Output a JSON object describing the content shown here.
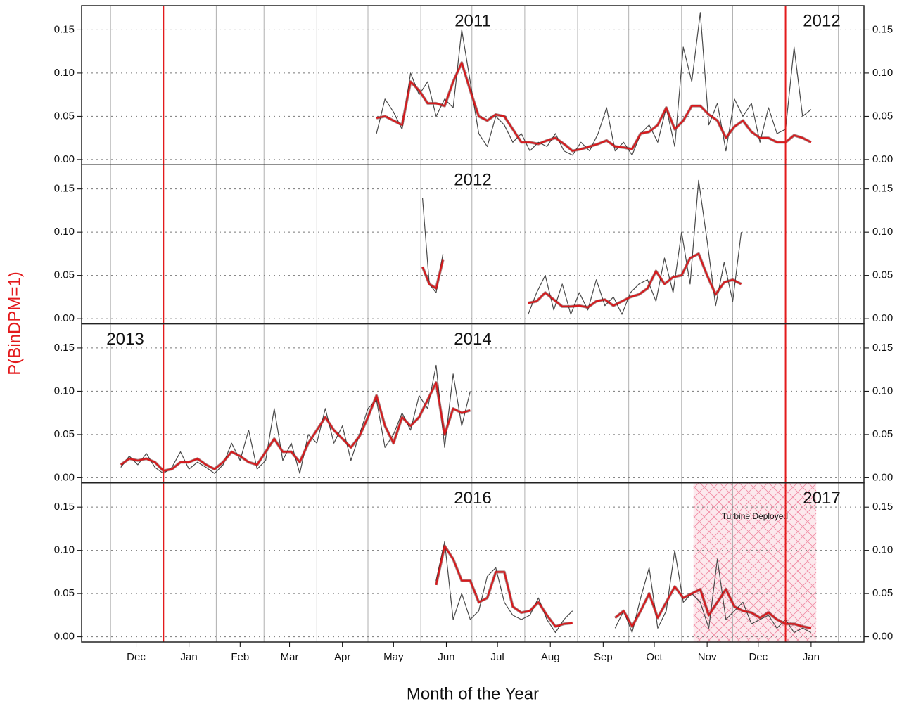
{
  "xlabel": "Month of the Year",
  "ylabel": "P(BinDPM=1)",
  "chart_data": [
    {
      "type": "line",
      "title": "2011",
      "corner_label": "2012",
      "corner_position": "right",
      "xlim": [
        -17,
        442
      ],
      "ylim": [
        -0.006,
        0.178
      ],
      "yticks": [
        {
          "value": 0,
          "label": "0.00"
        },
        {
          "value": 0.05,
          "label": "0.05"
        },
        {
          "value": 0.1,
          "label": "0.10"
        },
        {
          "value": 0.15,
          "label": "0.15"
        }
      ],
      "vlines": [
        0,
        31,
        62,
        90,
        121,
        151,
        182,
        212,
        243,
        274,
        304,
        335,
        365,
        396,
        427
      ],
      "vline_color": "#b0b0b0",
      "markers": [
        31,
        396
      ],
      "marker_color": "#e31a1c",
      "grid": true,
      "x": [
        156,
        161,
        166,
        171,
        176,
        181,
        186,
        191,
        196,
        201,
        206,
        211,
        216,
        221,
        226,
        231,
        236,
        241,
        246,
        251,
        256,
        261,
        266,
        271,
        276,
        281,
        286,
        291,
        296,
        301,
        306,
        311,
        316,
        321,
        326,
        331,
        336,
        341,
        346,
        351,
        356,
        361,
        366,
        371,
        376,
        381,
        386,
        391,
        396,
        401,
        406,
        411
      ],
      "series": [
        {
          "color": "#4a4a4a",
          "values": [
            0.03,
            0.07,
            0.055,
            0.035,
            0.1,
            0.075,
            0.09,
            0.05,
            0.07,
            0.06,
            0.15,
            0.09,
            0.03,
            0.015,
            0.05,
            0.04,
            0.02,
            0.03,
            0.01,
            0.02,
            0.015,
            0.03,
            0.01,
            0.005,
            0.02,
            0.01,
            0.03,
            0.06,
            0.01,
            0.02,
            0.005,
            0.03,
            0.04,
            0.02,
            0.06,
            0.015,
            0.13,
            0.09,
            0.17,
            0.04,
            0.065,
            0.01,
            0.07,
            0.05,
            0.065,
            0.02,
            0.06,
            0.03,
            0.035,
            0.13,
            0.05,
            0.058
          ]
        },
        {
          "color": "#d7191c",
          "values": [
            0.048,
            0.05,
            0.045,
            0.04,
            0.09,
            0.08,
            0.065,
            0.065,
            0.062,
            0.09,
            0.112,
            0.08,
            0.05,
            0.045,
            0.052,
            0.05,
            0.035,
            0.02,
            0.02,
            0.018,
            0.022,
            0.025,
            0.018,
            0.01,
            0.012,
            0.015,
            0.018,
            0.022,
            0.015,
            0.014,
            0.012,
            0.03,
            0.032,
            0.04,
            0.06,
            0.035,
            0.045,
            0.062,
            0.062,
            0.052,
            0.045,
            0.025,
            0.038,
            0.045,
            0.032,
            0.025,
            0.025,
            0.02,
            0.02,
            0.028,
            0.025,
            0.02
          ]
        }
      ]
    },
    {
      "type": "line",
      "title": "2012",
      "xlim": [
        -17,
        442
      ],
      "ylim": [
        -0.006,
        0.178
      ],
      "yticks": [
        {
          "value": 0,
          "label": "0.00"
        },
        {
          "value": 0.05,
          "label": "0.05"
        },
        {
          "value": 0.1,
          "label": "0.10"
        },
        {
          "value": 0.15,
          "label": "0.15"
        }
      ],
      "vlines": [
        0,
        31,
        62,
        90,
        121,
        151,
        182,
        212,
        243,
        274,
        304,
        335,
        365,
        396,
        427
      ],
      "vline_color": "#b0b0b0",
      "markers": [
        31,
        396
      ],
      "marker_color": "#e31a1c",
      "grid": true,
      "x": [
        183,
        187,
        191,
        195,
        220,
        245,
        250,
        255,
        260,
        265,
        270,
        275,
        280,
        285,
        290,
        295,
        300,
        305,
        310,
        315,
        320,
        325,
        330,
        335,
        340,
        345,
        350,
        355,
        360,
        365,
        370
      ],
      "series": [
        {
          "color": "#4a4a4a",
          "values": [
            0.14,
            0.04,
            0.03,
            0.075,
            null,
            0.005,
            0.03,
            0.05,
            0.01,
            0.04,
            0.005,
            0.03,
            0.01,
            0.045,
            0.015,
            0.025,
            0.005,
            0.03,
            0.04,
            0.045,
            0.02,
            0.07,
            0.03,
            0.1,
            0.04,
            0.16,
            0.09,
            0.015,
            0.065,
            0.02,
            0.1
          ]
        },
        {
          "color": "#d7191c",
          "values": [
            0.06,
            0.04,
            0.035,
            0.068,
            null,
            0.018,
            0.02,
            0.03,
            0.022,
            0.014,
            0.014,
            0.015,
            0.013,
            0.02,
            0.022,
            0.015,
            0.02,
            0.025,
            0.028,
            0.035,
            0.055,
            0.04,
            0.048,
            0.05,
            0.07,
            0.075,
            0.05,
            0.028,
            0.042,
            0.045,
            0.04
          ]
        }
      ]
    },
    {
      "type": "line",
      "title": "2014",
      "corner_label": "2013",
      "corner_position": "left",
      "xlim": [
        -17,
        442
      ],
      "ylim": [
        -0.006,
        0.178
      ],
      "yticks": [
        {
          "value": 0,
          "label": "0.00"
        },
        {
          "value": 0.05,
          "label": "0.05"
        },
        {
          "value": 0.1,
          "label": "0.10"
        },
        {
          "value": 0.15,
          "label": "0.15"
        }
      ],
      "vlines": [
        0,
        31,
        62,
        90,
        121,
        151,
        182,
        212,
        243,
        274,
        304,
        335,
        365,
        396,
        427
      ],
      "vline_color": "#b0b0b0",
      "markers": [
        31,
        396
      ],
      "marker_color": "#e31a1c",
      "grid": true,
      "x": [
        6,
        11,
        16,
        21,
        26,
        31,
        36,
        41,
        46,
        51,
        56,
        61,
        66,
        71,
        76,
        81,
        86,
        91,
        96,
        101,
        106,
        111,
        116,
        121,
        126,
        131,
        136,
        141,
        146,
        151,
        156,
        161,
        166,
        171,
        176,
        181,
        186,
        191,
        196,
        201,
        206,
        211
      ],
      "series": [
        {
          "color": "#4a4a4a",
          "values": [
            0.012,
            0.025,
            0.015,
            0.028,
            0.012,
            0.005,
            0.012,
            0.03,
            0.01,
            0.018,
            0.012,
            0.005,
            0.015,
            0.04,
            0.02,
            0.055,
            0.01,
            0.02,
            0.08,
            0.02,
            0.04,
            0.005,
            0.05,
            0.04,
            0.08,
            0.04,
            0.06,
            0.02,
            0.05,
            0.08,
            0.09,
            0.035,
            0.05,
            0.075,
            0.055,
            0.095,
            0.08,
            0.13,
            0.035,
            0.12,
            0.06,
            0.1
          ]
        },
        {
          "color": "#d7191c",
          "values": [
            0.015,
            0.022,
            0.02,
            0.022,
            0.018,
            0.008,
            0.01,
            0.018,
            0.018,
            0.022,
            0.015,
            0.01,
            0.018,
            0.03,
            0.025,
            0.018,
            0.015,
            0.03,
            0.045,
            0.03,
            0.03,
            0.018,
            0.04,
            0.055,
            0.07,
            0.055,
            0.045,
            0.035,
            0.048,
            0.07,
            0.095,
            0.06,
            0.04,
            0.07,
            0.06,
            0.07,
            0.09,
            0.11,
            0.05,
            0.08,
            0.075,
            0.078
          ]
        }
      ]
    },
    {
      "type": "line",
      "title": "2016",
      "corner_label": "2017",
      "corner_position": "right",
      "xlim": [
        -17,
        442
      ],
      "ylim": [
        -0.006,
        0.178
      ],
      "yticks": [
        {
          "value": 0,
          "label": "0.00"
        },
        {
          "value": 0.05,
          "label": "0.05"
        },
        {
          "value": 0.1,
          "label": "0.10"
        },
        {
          "value": 0.15,
          "label": "0.15"
        }
      ],
      "xticks": [
        {
          "value": 15,
          "label": "Dec"
        },
        {
          "value": 46,
          "label": "Jan"
        },
        {
          "value": 76,
          "label": "Feb"
        },
        {
          "value": 105,
          "label": "Mar"
        },
        {
          "value": 136,
          "label": "Apr"
        },
        {
          "value": 166,
          "label": "May"
        },
        {
          "value": 197,
          "label": "Jun"
        },
        {
          "value": 227,
          "label": "Jul"
        },
        {
          "value": 258,
          "label": "Aug"
        },
        {
          "value": 289,
          "label": "Sep"
        },
        {
          "value": 319,
          "label": "Oct"
        },
        {
          "value": 350,
          "label": "Nov"
        },
        {
          "value": 380,
          "label": "Dec"
        },
        {
          "value": 411,
          "label": "Jan"
        }
      ],
      "vlines": [
        0,
        31,
        62,
        90,
        121,
        151,
        182,
        212,
        243,
        274,
        304,
        335,
        365,
        396,
        427
      ],
      "vline_color": "#b0b0b0",
      "markers": [
        31,
        396
      ],
      "marker_color": "#e31a1c",
      "grid": true,
      "shade": {
        "x": [
          342,
          414
        ],
        "label": "Turbine Deployed",
        "color": "#f4a6b8"
      },
      "x": [
        191,
        196,
        201,
        206,
        211,
        216,
        221,
        226,
        231,
        236,
        241,
        246,
        251,
        256,
        261,
        266,
        271,
        285,
        296,
        301,
        306,
        311,
        316,
        321,
        326,
        331,
        336,
        341,
        346,
        351,
        356,
        361,
        366,
        371,
        376,
        381,
        386,
        391,
        396,
        401,
        406,
        411
      ],
      "series": [
        {
          "color": "#4a4a4a",
          "values": [
            0.065,
            0.11,
            0.02,
            0.05,
            0.02,
            0.03,
            0.07,
            0.08,
            0.04,
            0.025,
            0.02,
            0.025,
            0.045,
            0.02,
            0.005,
            0.02,
            0.03,
            null,
            0.01,
            0.03,
            0.005,
            0.045,
            0.08,
            0.01,
            0.03,
            0.1,
            0.04,
            0.05,
            0.04,
            0.01,
            0.09,
            0.02,
            0.03,
            0.04,
            0.015,
            0.02,
            0.025,
            0.01,
            0.02,
            0.005,
            0.01,
            0.005
          ]
        },
        {
          "color": "#d7191c",
          "values": [
            0.06,
            0.105,
            0.09,
            0.065,
            0.065,
            0.04,
            0.045,
            0.075,
            0.075,
            0.035,
            0.028,
            0.03,
            0.04,
            0.025,
            0.012,
            0.015,
            0.016,
            null,
            0.022,
            0.03,
            0.012,
            0.03,
            0.05,
            0.022,
            0.04,
            0.058,
            0.045,
            0.05,
            0.055,
            0.025,
            0.04,
            0.055,
            0.035,
            0.03,
            0.028,
            0.022,
            0.028,
            0.02,
            0.015,
            0.015,
            0.012,
            0.01
          ]
        }
      ]
    }
  ]
}
